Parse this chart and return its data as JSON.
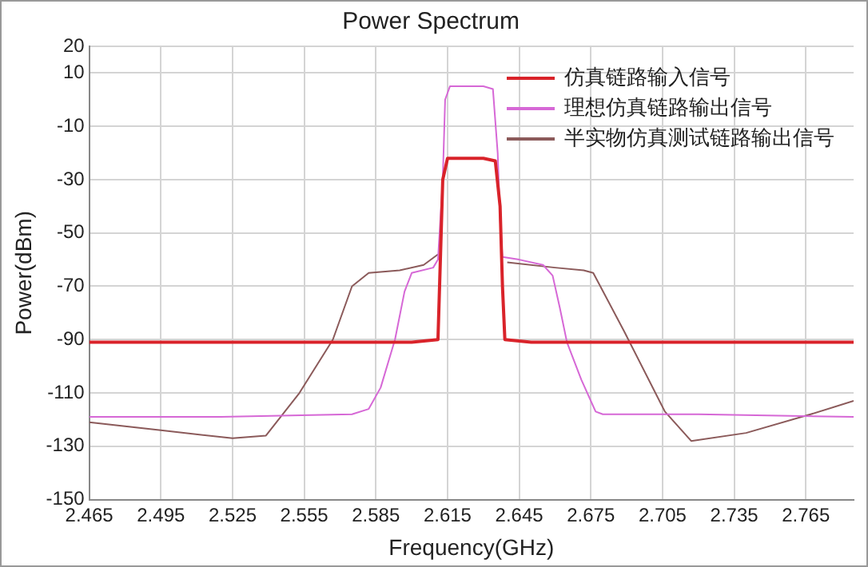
{
  "chart_data": {
    "type": "line",
    "title": "Power Spectrum",
    "xlabel": "Frequency(GHz)",
    "ylabel": "Power(dBm)",
    "xlim": [
      2.465,
      2.785
    ],
    "xticks": [
      2.465,
      2.495,
      2.525,
      2.555,
      2.585,
      2.615,
      2.645,
      2.675,
      2.705,
      2.735,
      2.765
    ],
    "ylim": [
      -150,
      20
    ],
    "yticks": [
      20,
      10,
      -10,
      -30,
      -50,
      -70,
      -90,
      -110,
      -130,
      -150
    ],
    "grid": true,
    "legend": "top right",
    "marker": "none",
    "line_style": "solid",
    "series": [
      {
        "name": "仿真链路输入信号",
        "color": "#d9232a",
        "x": [
          2.465,
          2.5,
          2.55,
          2.6,
          2.611,
          2.612,
          2.613,
          2.615,
          2.62,
          2.63,
          2.635,
          2.637,
          2.638,
          2.639,
          2.65,
          2.7,
          2.75,
          2.785
        ],
        "values": [
          -91,
          -91,
          -91,
          -91,
          -90,
          -60,
          -30,
          -22,
          -22,
          -22,
          -23,
          -40,
          -70,
          -90,
          -91,
          -91,
          -91,
          -91
        ]
      },
      {
        "name": "理想仿真链路输出信号",
        "color": "#d668d6",
        "x": [
          2.465,
          2.52,
          2.575,
          2.582,
          2.587,
          2.593,
          2.597,
          2.6,
          2.609,
          2.611,
          2.613,
          2.614,
          2.616,
          2.62,
          2.63,
          2.634,
          2.636,
          2.637,
          2.638,
          2.645,
          2.655,
          2.659,
          2.662,
          2.665,
          2.671,
          2.677,
          2.68,
          2.72,
          2.785
        ],
        "values": [
          -119,
          -119,
          -118,
          -116,
          -108,
          -90,
          -72,
          -65,
          -63,
          -60,
          -30,
          0,
          5,
          5,
          5,
          4,
          -20,
          -45,
          -59,
          -60,
          -62,
          -66,
          -78,
          -91,
          -105,
          -117,
          -118,
          -118,
          -119
        ]
      },
      {
        "name": "半实物仿真测试链路输出信号",
        "color": "#8b5a5a",
        "x": [
          2.465,
          2.495,
          2.525,
          2.539,
          2.553,
          2.567,
          2.575,
          2.582,
          2.595,
          2.605,
          2.611,
          2.612,
          2.638,
          2.64,
          2.66,
          2.672,
          2.676,
          2.689,
          2.706,
          2.717,
          2.74,
          2.767,
          2.785
        ],
        "values": [
          -121,
          -124,
          -127,
          -126,
          -110,
          -90,
          -70,
          -65,
          -64,
          -62,
          -58,
          null,
          null,
          -61,
          -63,
          -64,
          -65,
          -87,
          -117,
          -128,
          -125,
          -118,
          -113
        ]
      }
    ]
  }
}
